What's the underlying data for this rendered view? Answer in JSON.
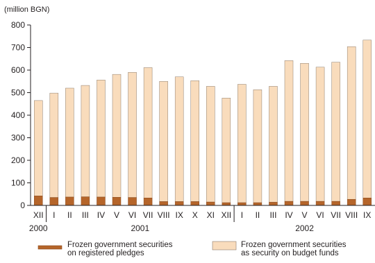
{
  "chart_data": {
    "type": "bar",
    "stacked": true,
    "unit_label": "(million BGN)",
    "categories": [
      "XII",
      "I",
      "II",
      "III",
      "IV",
      "V",
      "VI",
      "VII",
      "VIII",
      "IX",
      "X",
      "XI",
      "XII",
      "I",
      "II",
      "III",
      "IV",
      "V",
      "VI",
      "VII",
      "VIII",
      "IX"
    ],
    "years": [
      {
        "label": "2000",
        "start": 0,
        "end": 0
      },
      {
        "label": "2001",
        "start": 1,
        "end": 12
      },
      {
        "label": "2002",
        "start": 13,
        "end": 21
      }
    ],
    "series": [
      {
        "name": "Frozen government securities on registered pledges",
        "color": "#b5652a",
        "values": [
          42,
          35,
          37,
          38,
          37,
          36,
          35,
          33,
          17,
          17,
          17,
          15,
          12,
          12,
          12,
          14,
          18,
          18,
          18,
          18,
          27,
          33
        ]
      },
      {
        "name": "Frozen government securities as security on budget funds",
        "color": "#f9dcbc",
        "values": [
          423,
          463,
          483,
          494,
          519,
          545,
          555,
          578,
          533,
          553,
          536,
          513,
          464,
          525,
          501,
          514,
          624,
          612,
          595,
          617,
          677,
          700
        ]
      }
    ],
    "totals": [
      465,
      498,
      520,
      532,
      556,
      581,
      590,
      611,
      550,
      570,
      553,
      528,
      476,
      537,
      513,
      528,
      642,
      630,
      613,
      635,
      704,
      733
    ],
    "ylim": [
      0,
      800
    ],
    "yticks": [
      0,
      100,
      200,
      300,
      400,
      500,
      600,
      700,
      800
    ],
    "grid": false,
    "legend_position": "bottom"
  }
}
